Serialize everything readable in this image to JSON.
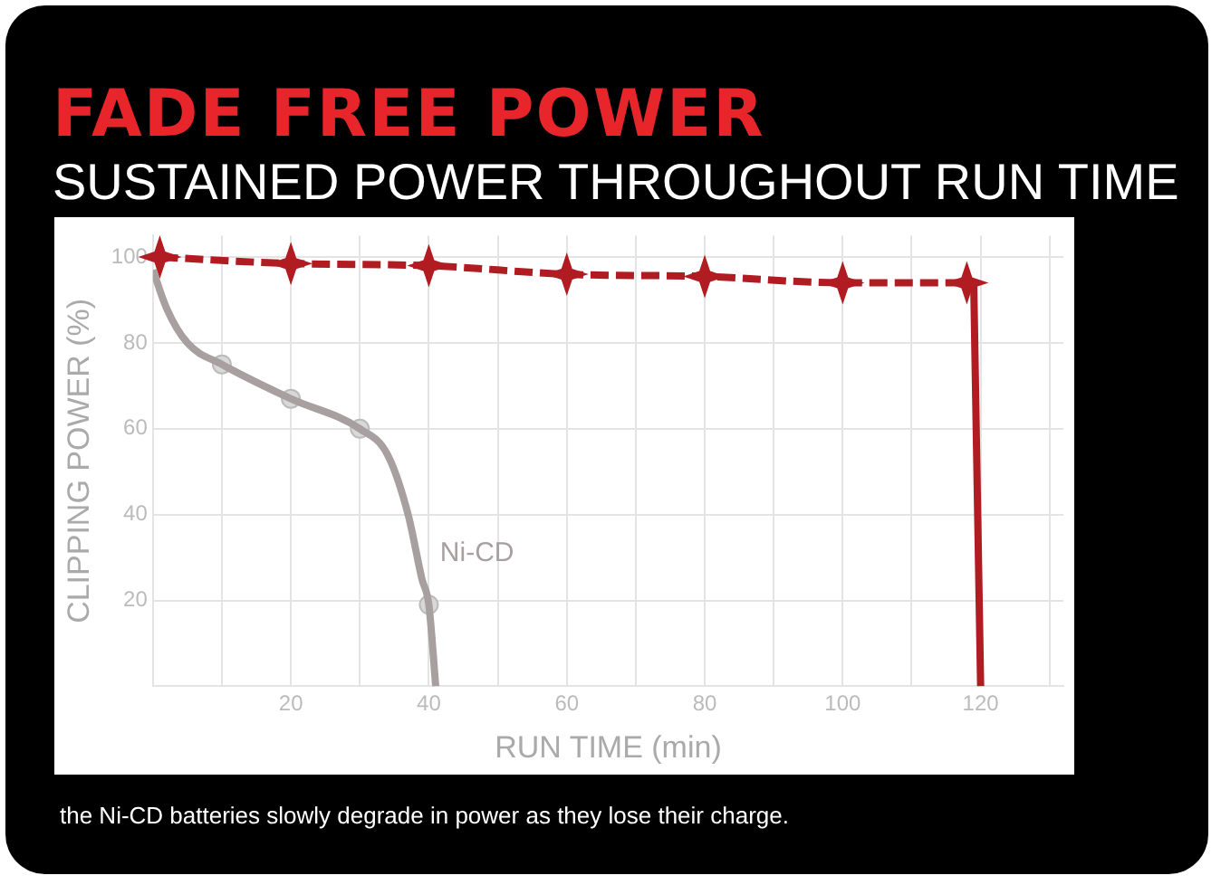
{
  "chart_data": {
    "type": "line",
    "title": "FADE FREE POWER",
    "subtitle": "SUSTAINED POWER THROUGHOUT RUN TIME",
    "xlabel": "RUN TIME (min)",
    "ylabel": "CLIPPING POWER (%)",
    "xlim": [
      0,
      132
    ],
    "xticks": [
      {
        "value": 10,
        "label": null
      },
      20,
      {
        "value": 30,
        "label": null
      },
      40,
      {
        "value": 50,
        "label": null
      },
      60,
      {
        "value": 70,
        "label": null
      },
      80,
      {
        "value": 90,
        "label": null
      },
      100,
      {
        "value": 110,
        "label": null
      },
      120,
      {
        "value": 130,
        "label": null
      }
    ],
    "ylim": [
      0,
      105
    ],
    "yticks": [
      20,
      40,
      60,
      80,
      100
    ],
    "grid": true,
    "legend": false,
    "series": [
      {
        "color": "#b01c22",
        "marker": "star",
        "line_style": "dashed",
        "x": [
          1,
          20,
          40,
          60,
          80,
          100,
          118
        ],
        "values": [
          100,
          98.5,
          98,
          96,
          95.5,
          94,
          94
        ]
      },
      {
        "color": "#b01c22",
        "marker": "none",
        "line_style": "solid",
        "x": [
          119,
          120
        ],
        "values": [
          94,
          0
        ]
      },
      {
        "name": "Ni-CD",
        "color": "#a8a0a0",
        "marker": "none",
        "line_style": "solid",
        "x": [
          0,
          2,
          5,
          10,
          20,
          30,
          34,
          37,
          39,
          40,
          41
        ],
        "values": [
          97,
          88,
          80,
          75,
          67,
          60,
          54,
          40,
          25,
          19,
          0
        ]
      },
      {
        "type": "scatter",
        "color": "#d8d8d8",
        "marker": "circle",
        "x": [
          10,
          20,
          30,
          40
        ],
        "values": [
          75,
          67,
          60,
          19
        ]
      }
    ],
    "annotations": [
      "the Ni-CD batteries slowly degrade in power as they lose their charge."
    ]
  }
}
